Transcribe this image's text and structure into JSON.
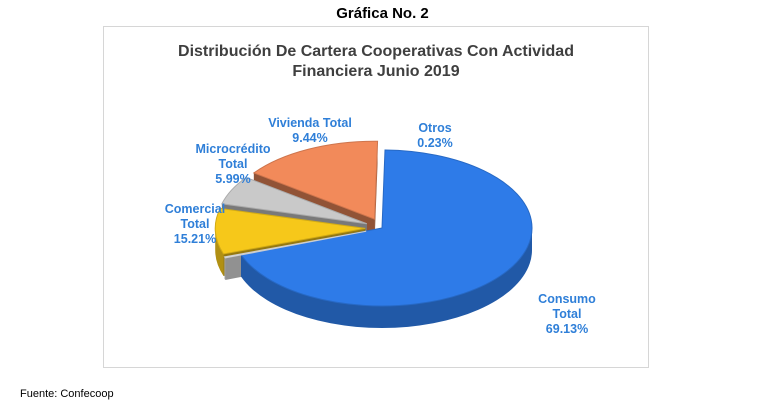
{
  "page": {
    "heading": "Gráfica No. 2",
    "source": "Fuente: Confecoop"
  },
  "chart_data": {
    "type": "pie",
    "title_lines": [
      "Distribución De Cartera Cooperativas Con Actividad",
      "Financiera Junio 2019"
    ],
    "unit": "%",
    "slices": [
      {
        "label_lines": [
          "Consumo",
          "Total"
        ],
        "value": 69.13,
        "value_text": "69.13%",
        "color": "#2e7be8"
      },
      {
        "label_lines": [
          "Otros"
        ],
        "value": 0.23,
        "value_text": "0.23%",
        "color": "#f2f2f2"
      },
      {
        "label_lines": [
          "Vivienda Total"
        ],
        "value": 9.44,
        "value_text": "9.44%",
        "color": "#f6c81a"
      },
      {
        "label_lines": [
          "Microcrédito",
          "Total"
        ],
        "value": 5.99,
        "value_text": "5.99%",
        "color": "#c9c9c9"
      },
      {
        "label_lines": [
          "Comercial",
          "Total"
        ],
        "value": 15.21,
        "value_text": "15.21%",
        "color": "#f28a5a"
      }
    ],
    "legend": "none",
    "style": "3d exploded"
  }
}
